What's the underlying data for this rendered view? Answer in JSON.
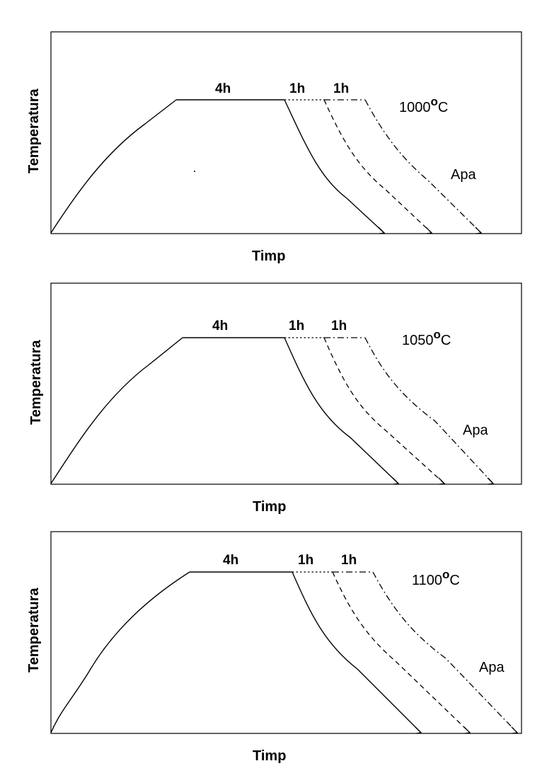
{
  "diagrams": [
    {
      "temperature_label": "1000",
      "degree_symbol": "o",
      "unit": "C",
      "hold_label": "4h",
      "step1_label": "1h",
      "step2_label": "1h",
      "quench_label": "Apa",
      "y_axis_label": "Temperatura",
      "x_axis_label": "Timp"
    },
    {
      "temperature_label": "1050",
      "degree_symbol": "o",
      "unit": "C",
      "hold_label": "4h",
      "step1_label": "1h",
      "step2_label": "1h",
      "quench_label": "Apa",
      "y_axis_label": "Temperatura",
      "x_axis_label": "Timp"
    },
    {
      "temperature_label": "1100",
      "degree_symbol": "o",
      "unit": "C",
      "hold_label": "4h",
      "step1_label": "1h",
      "step2_label": "1h",
      "quench_label": "Apa",
      "y_axis_label": "Temperatura",
      "x_axis_label": "Timp"
    }
  ]
}
